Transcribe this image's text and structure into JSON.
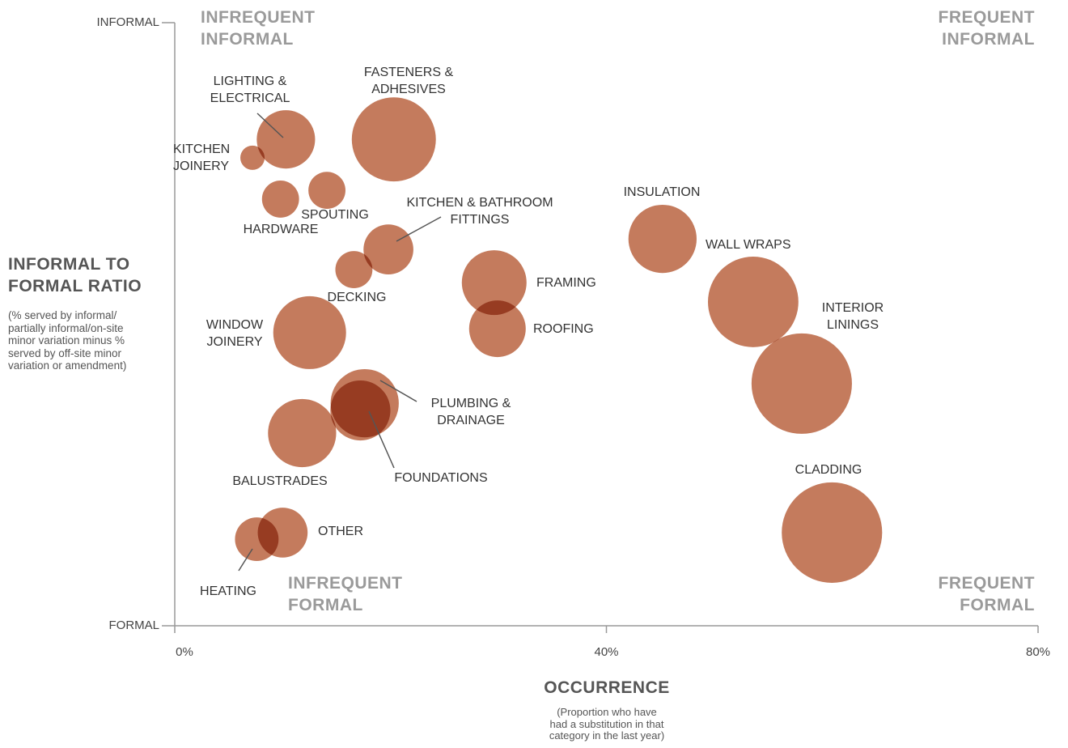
{
  "chart_data": {
    "type": "bubble",
    "color": "#c47b5d",
    "xlim": [
      0,
      80
    ],
    "xticks": [
      {
        "value": 0,
        "label": "0%"
      },
      {
        "value": 40,
        "label": "40%"
      },
      {
        "value": 80,
        "label": "80%"
      }
    ],
    "ylim": [
      -100,
      100
    ],
    "yticks": [
      {
        "value": -100,
        "label": "FORMAL"
      },
      {
        "value": 100,
        "label": "INFORMAL"
      }
    ],
    "x_label": "OCCURRENCE",
    "x_sublabel": "(Proportion who have\nhad a substitution in that\ncategory in the last year)",
    "y_label": "INFORMAL TO\nFORMAL RATIO",
    "y_sublabel": "(% served by informal/\npartially informal/on-site\nminor variation minus %\nserved by off-site minor\nvariation or amendment)",
    "quadrants": [
      "INFREQUENT\nINFORMAL",
      "FREQUENT\nINFORMAL",
      "INFREQUENT\nFORMAL",
      "FREQUENT\nFORMAL"
    ],
    "points": [
      {
        "name": "LIGHTING &\nELECTRICAL",
        "x": 10.3,
        "y": 61.3,
        "size": 52
      },
      {
        "name": "FASTENERS &\nADHESIVES",
        "x": 20.3,
        "y": 61.3,
        "size": 108
      },
      {
        "name": "KITCHEN\nJOINERY",
        "x": 7.2,
        "y": 55.2,
        "size": 9
      },
      {
        "name": "HARDWARE",
        "x": 9.8,
        "y": 41.5,
        "size": 21
      },
      {
        "name": "SPOUTING",
        "x": 14.1,
        "y": 44.4,
        "size": 21
      },
      {
        "name": "KITCHEN & BATHROOM\nFITTINGS",
        "x": 19.8,
        "y": 24.8,
        "size": 38
      },
      {
        "name": "DECKING",
        "x": 16.6,
        "y": 18.1,
        "size": 21
      },
      {
        "name": "FRAMING",
        "x": 29.6,
        "y": 13.8,
        "size": 64
      },
      {
        "name": "ROOFING",
        "x": 29.9,
        "y": -1.5,
        "size": 49
      },
      {
        "name": "INSULATION",
        "x": 45.2,
        "y": 28.3,
        "size": 71
      },
      {
        "name": "WALL WRAPS",
        "x": 53.6,
        "y": 7.4,
        "size": 125
      },
      {
        "name": "INTERIOR\nLININGS",
        "x": 58.1,
        "y": -19.7,
        "size": 154
      },
      {
        "name": "WINDOW\nJOINERY",
        "x": 12.5,
        "y": -2.8,
        "size": 81
      },
      {
        "name": "PLUMBING &\nDRAINAGE",
        "x": 17.6,
        "y": -26.2,
        "size": 71
      },
      {
        "name": "FOUNDATIONS",
        "x": 17.2,
        "y": -28.6,
        "size": 55
      },
      {
        "name": "BALUSTRADES",
        "x": 11.8,
        "y": -36.1,
        "size": 71
      },
      {
        "name": "OTHER",
        "x": 10.0,
        "y": -69.1,
        "size": 38
      },
      {
        "name": "HEATING",
        "x": 7.6,
        "y": -71.3,
        "size": 29
      },
      {
        "name": "CLADDING",
        "x": 60.9,
        "y": -69.1,
        "size": 154
      }
    ]
  }
}
